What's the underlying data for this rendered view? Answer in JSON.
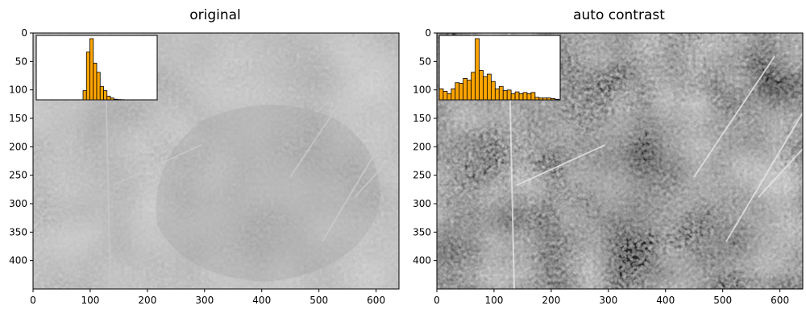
{
  "chart_data": [
    {
      "type": "image",
      "title": "original",
      "xlim": [
        0,
        640
      ],
      "ylim": [
        450,
        0
      ],
      "x_ticks": [
        0,
        100,
        200,
        300,
        400,
        500,
        600
      ],
      "y_ticks": [
        0,
        50,
        100,
        150,
        200,
        250,
        300,
        350,
        400
      ],
      "image_description": "grayscale scanning-electron micrograph of rounded granular clusters with thin fibres, low contrast",
      "inset_histogram": {
        "type": "bar",
        "color": "#ffa500",
        "bins": [
          82,
          88,
          94,
          100,
          106,
          112,
          118,
          124,
          130,
          136,
          142,
          148
        ],
        "values": [
          15,
          78,
          100,
          60,
          45,
          22,
          15,
          6,
          3,
          1,
          0.5,
          0.3
        ]
      }
    },
    {
      "type": "image",
      "title": "auto contrast",
      "xlim": [
        0,
        640
      ],
      "ylim": [
        450,
        0
      ],
      "x_ticks": [
        0,
        100,
        200,
        300,
        400,
        500,
        600
      ],
      "y_ticks": [
        0,
        50,
        100,
        150,
        200,
        250,
        300,
        350,
        400
      ],
      "image_description": "same micrograph after contrast stretching, darker shadows and brighter highlights",
      "inset_histogram": {
        "type": "bar",
        "color": "#ffa500",
        "bins": [
          0,
          7,
          14,
          21,
          28,
          35,
          42,
          49,
          56,
          63,
          70,
          77,
          84,
          91,
          98,
          105,
          112,
          119,
          126,
          133,
          140,
          147,
          154,
          161,
          168,
          175,
          182,
          189,
          196,
          203
        ],
        "values": [
          18,
          14,
          10,
          18,
          28,
          27,
          35,
          32,
          45,
          100,
          48,
          38,
          42,
          30,
          18,
          22,
          15,
          16,
          10,
          13,
          10,
          12,
          10,
          12,
          4,
          3,
          3,
          3,
          2,
          1
        ]
      }
    }
  ],
  "colors": {
    "bar_fill": "#ffa500",
    "bar_edge": "#000000"
  }
}
